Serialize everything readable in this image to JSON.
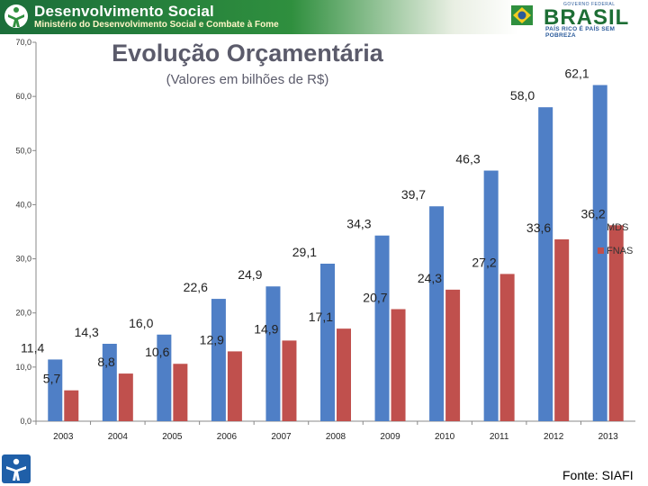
{
  "header": {
    "org_name": "Desenvolvimento Social",
    "ministry": "Ministério do Desenvolvimento Social e Combate à Fome",
    "brand_word": "BRASIL",
    "brand_tagline": "PAÍS RICO É PAÍS SEM POBREZA",
    "brand_gov": "GOVERNO FEDERAL",
    "colors": {
      "banner_green": "#2f8f3e"
    }
  },
  "chart_data": {
    "type": "bar",
    "title": "Evolução Orçamentária",
    "subtitle": "(Valores em bilhões de R$)",
    "categories": [
      "2003",
      "2004",
      "2005",
      "2006",
      "2007",
      "2008",
      "2009",
      "2010",
      "2011",
      "2012",
      "2013"
    ],
    "series": [
      {
        "name": "MDS",
        "color": "#4f7fc6",
        "values": [
          11.4,
          14.3,
          16.0,
          22.6,
          24.9,
          29.1,
          34.3,
          39.7,
          46.3,
          58.0,
          62.1
        ],
        "labels": [
          "11,4",
          "14,3",
          "16,0",
          "22,6",
          "24,9",
          "29,1",
          "34,3",
          "39,7",
          "46,3",
          "58,0",
          "62,1"
        ]
      },
      {
        "name": "FNAS",
        "color": "#c0504d",
        "values": [
          5.7,
          8.8,
          10.6,
          12.9,
          14.9,
          17.1,
          20.7,
          24.3,
          27.2,
          33.6,
          36.2
        ],
        "labels": [
          "5,7",
          "8,8",
          "10,6",
          "12,9",
          "14,9",
          "17,1",
          "20,7",
          "24,3",
          "27,2",
          "33,6",
          "36,2"
        ]
      }
    ],
    "yticks": [
      "0,0",
      "10,0",
      "20,0",
      "30,0",
      "40,0",
      "50,0",
      "60,0",
      "70,0"
    ],
    "ylim": [
      0,
      70
    ],
    "xlabel": "",
    "ylabel": "",
    "legend_position": "right"
  },
  "footer": {
    "source": "Fonte: SIAFI"
  }
}
